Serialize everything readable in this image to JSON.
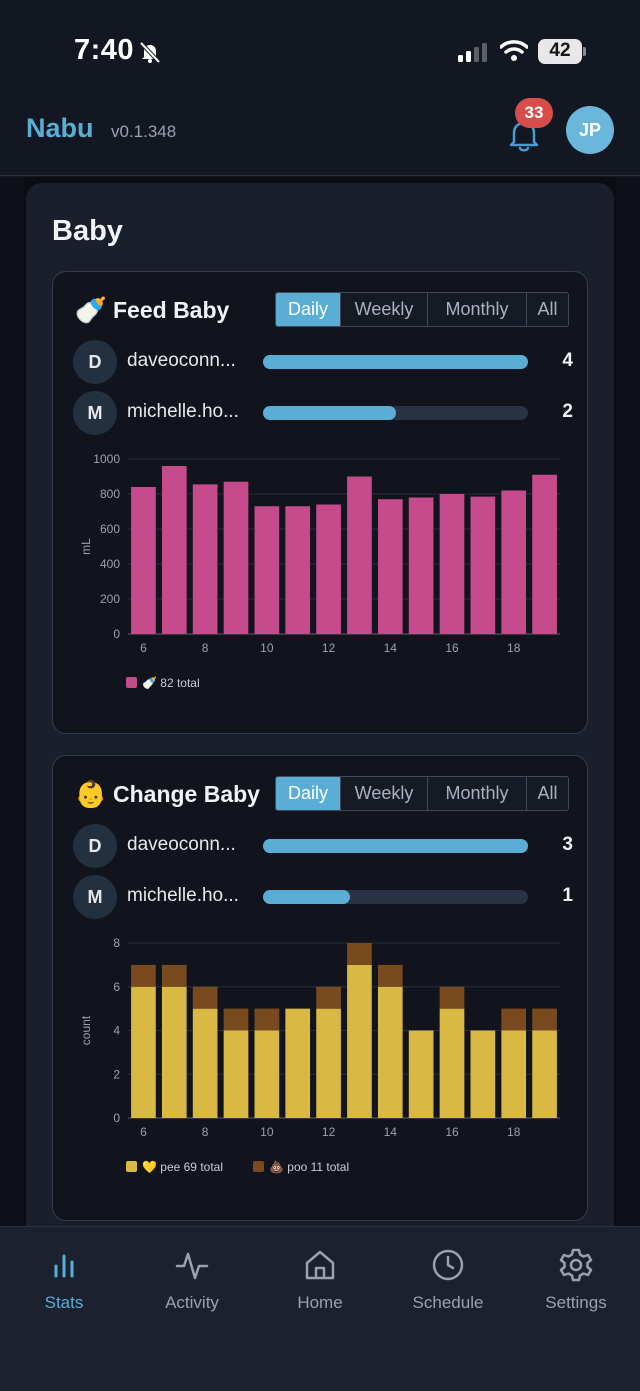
{
  "status_bar": {
    "time": "7:40",
    "battery": "42"
  },
  "header": {
    "app_name": "Nabu",
    "version": "v0.1.348",
    "notification_count": "33",
    "avatar_initials": "JP"
  },
  "section": {
    "title": "Baby"
  },
  "feed": {
    "emoji": "🍼",
    "title": "Feed Baby",
    "tabs": [
      "Daily",
      "Weekly",
      "Monthly",
      "All"
    ],
    "active_tab": "Daily",
    "users": [
      {
        "initial": "D",
        "name": "daveoconn...",
        "count": "4",
        "progress": 1.0
      },
      {
        "initial": "M",
        "name": "michelle.ho...",
        "count": "2",
        "progress": 0.5
      }
    ],
    "legend": {
      "emoji": "🍼",
      "text": "82 total"
    }
  },
  "change": {
    "emoji": "👶",
    "title": "Change Baby",
    "tabs": [
      "Daily",
      "Weekly",
      "Monthly",
      "All"
    ],
    "active_tab": "Daily",
    "users": [
      {
        "initial": "D",
        "name": "daveoconn...",
        "count": "3",
        "progress": 1.0
      },
      {
        "initial": "M",
        "name": "michelle.ho...",
        "count": "1",
        "progress": 0.33
      }
    ],
    "legend": [
      {
        "emoji": "💛",
        "text": "pee 69 total"
      },
      {
        "emoji": "💩",
        "text": "poo 11 total"
      }
    ]
  },
  "chart_data": [
    {
      "type": "bar",
      "x": [
        6,
        7,
        8,
        9,
        10,
        11,
        12,
        13,
        14,
        15,
        16,
        17,
        18,
        19
      ],
      "xticks": [
        6,
        8,
        10,
        12,
        14,
        16,
        18
      ],
      "series": [
        {
          "values": [
            840,
            960,
            855,
            870,
            730,
            730,
            740,
            900,
            770,
            780,
            800,
            785,
            820,
            910
          ],
          "color": "#c64b8c"
        }
      ],
      "ylabel": "mL",
      "ylim": [
        0,
        1000
      ],
      "yticks": [
        0,
        200,
        400,
        600,
        800,
        1000
      ],
      "grid": true,
      "legend": "bottom-left"
    },
    {
      "type": "bar",
      "stacked": true,
      "x": [
        6,
        7,
        8,
        9,
        10,
        11,
        12,
        13,
        14,
        15,
        16,
        17,
        18,
        19
      ],
      "xticks": [
        6,
        8,
        10,
        12,
        14,
        16,
        18
      ],
      "series": [
        {
          "values": [
            6,
            6,
            5,
            4,
            4,
            5,
            5,
            7,
            6,
            4,
            5,
            4,
            4,
            4
          ],
          "color": "#d9b843"
        },
        {
          "values": [
            1,
            1,
            1,
            1,
            1,
            0,
            1,
            1,
            1,
            0,
            1,
            0,
            1,
            1
          ],
          "color": "#7a4a1f"
        }
      ],
      "ylabel": "count",
      "ylim": [
        0,
        8
      ],
      "yticks": [
        0,
        2,
        4,
        6,
        8
      ],
      "grid": true,
      "legend": "bottom-left"
    }
  ],
  "nav": {
    "items": [
      {
        "label": "Stats",
        "icon": "bar-chart-icon",
        "active": true
      },
      {
        "label": "Activity",
        "icon": "activity-icon",
        "active": false
      },
      {
        "label": "Home",
        "icon": "home-icon",
        "active": false
      },
      {
        "label": "Schedule",
        "icon": "clock-icon",
        "active": false
      },
      {
        "label": "Settings",
        "icon": "gear-icon",
        "active": false
      }
    ]
  }
}
